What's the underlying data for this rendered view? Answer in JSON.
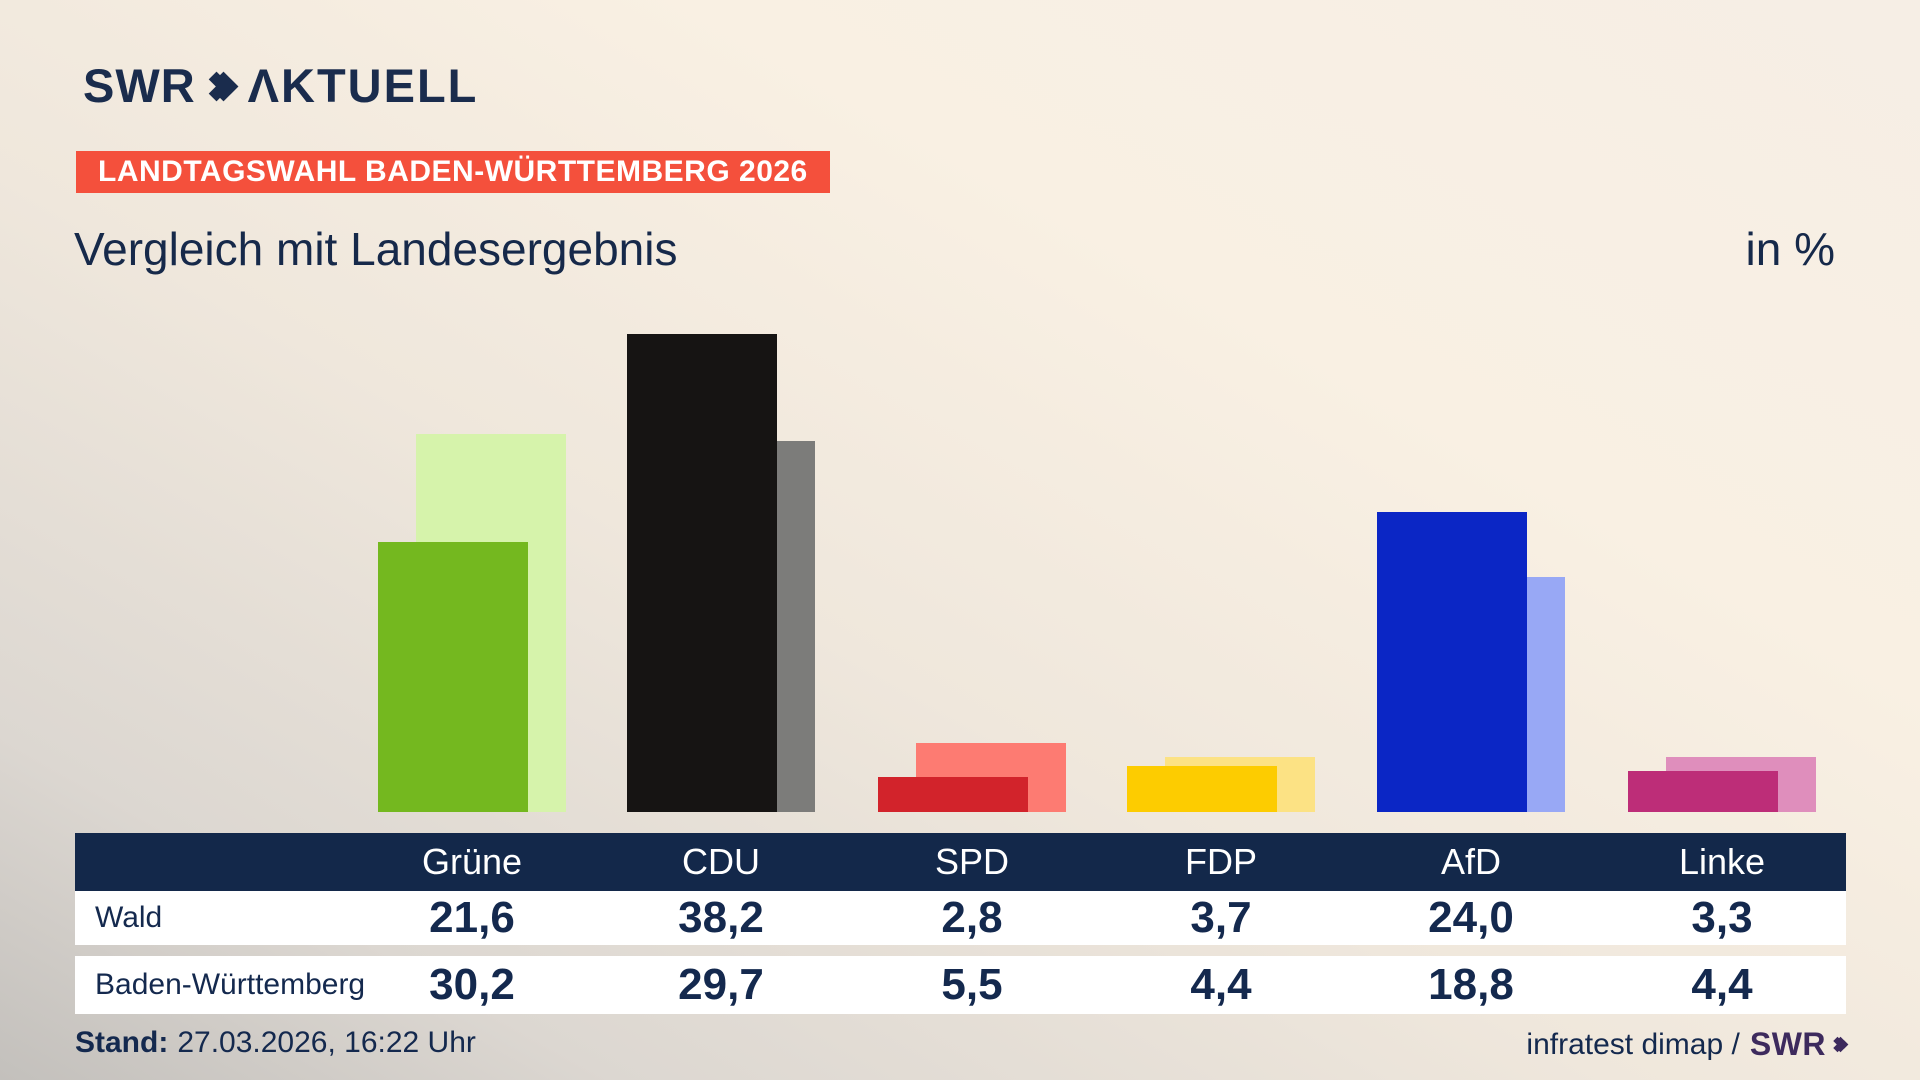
{
  "header": {
    "logo": {
      "swr": "SWR",
      "aktuell": "ΛKTUELL"
    },
    "badge": "LANDTAGSWAHL BADEN-WÜRTTEMBERG 2026",
    "badge_color": "#f4503c",
    "title": "Vergleich mit Landesergebnis",
    "unit_label": "in %"
  },
  "chart_data": {
    "type": "bar",
    "title": "Vergleich mit Landesergebnis",
    "ylabel": "in %",
    "ylim": [
      0,
      40
    ],
    "grid": false,
    "legend_position": "table-below",
    "categories": [
      "Grüne",
      "CDU",
      "SPD",
      "FDP",
      "AfD",
      "Linke"
    ],
    "series": [
      {
        "name": "Wald",
        "values": [
          21.6,
          38.2,
          2.8,
          3.7,
          24.0,
          3.3
        ],
        "colors": [
          "#74b81f",
          "#161413",
          "#d2232b",
          "#fdcc00",
          "#0b26c5",
          "#bd2d78"
        ]
      },
      {
        "name": "Baden-Württemberg",
        "values": [
          30.2,
          29.7,
          5.5,
          4.4,
          18.8,
          4.4
        ],
        "colors": [
          "#d6f3ab",
          "#7c7c7a",
          "#fd7b72",
          "#fce284",
          "#98a8f5",
          "#df8ebc"
        ]
      }
    ]
  },
  "table": {
    "header_bg": "#13284a",
    "row_labels": [
      "Wald",
      "Baden-Württemberg"
    ]
  },
  "footer": {
    "stand_label": "Stand:",
    "stand_value": "27.03.2026, 16:22 Uhr",
    "source": "infratest dimap /",
    "source_logo": "SWR",
    "source_logo_color": "#3d2a5d"
  }
}
